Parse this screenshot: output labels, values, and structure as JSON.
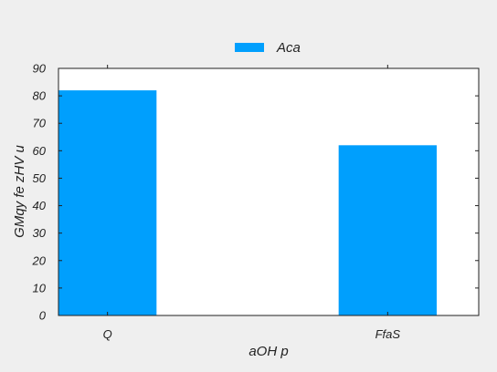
{
  "chart_data": {
    "type": "bar",
    "categories": [
      "Q",
      "FfaS"
    ],
    "series": [
      {
        "name": "Aca",
        "values": [
          82,
          62
        ],
        "color": "#009ffd"
      }
    ],
    "xlabel": "aOH p",
    "ylabel": "GMqy fe zHV u",
    "ylim": [
      0,
      90
    ],
    "yticks": [
      0,
      10,
      20,
      30,
      40,
      50,
      60,
      70,
      80,
      90
    ],
    "grid": false,
    "legend": {
      "position": "top-center"
    },
    "background": "#efefef",
    "plot_background": "#ffffff"
  }
}
